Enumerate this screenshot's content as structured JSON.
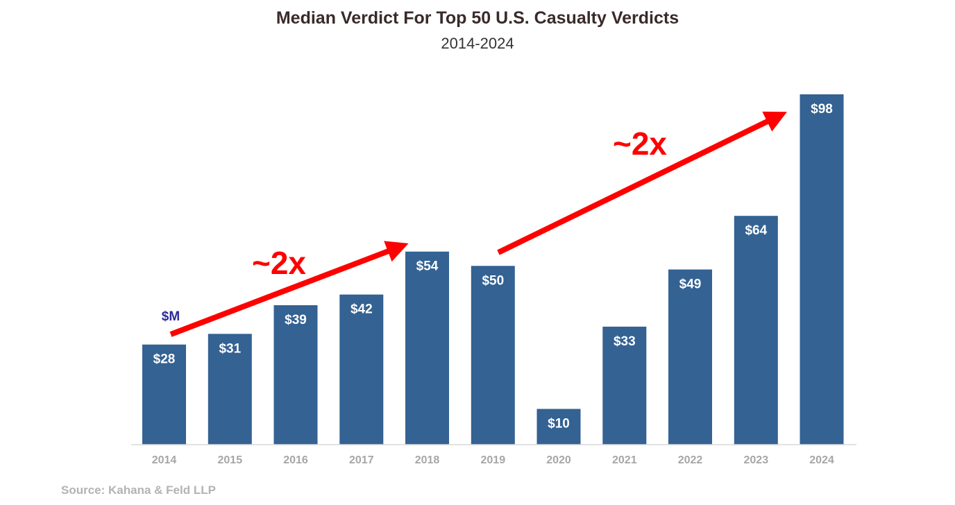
{
  "chart_data": {
    "type": "bar",
    "title": "Median Verdict For Top 50 U.S. Casualty Verdicts",
    "subtitle": "2014-2024",
    "unit_label": "$M",
    "categories": [
      "2014",
      "2015",
      "2016",
      "2017",
      "2018",
      "2019",
      "2020",
      "2021",
      "2022",
      "2023",
      "2024"
    ],
    "values": [
      28,
      31,
      39,
      42,
      54,
      50,
      10,
      33,
      49,
      64,
      98
    ],
    "data_labels": [
      "$28",
      "$31",
      "$39",
      "$42",
      "$54",
      "$50",
      "$10",
      "$33",
      "$49",
      "$64",
      "$98"
    ],
    "ylim": [
      0,
      98
    ],
    "grid": false,
    "legend": "none",
    "annotations": [
      {
        "text": "~2x",
        "from": "2014",
        "to": "2018"
      },
      {
        "text": "~2x",
        "from": "2019",
        "to": "2024"
      }
    ],
    "source": "Source: Kahana & Feld LLP",
    "colors": {
      "bar": "#336293",
      "arrow": "#ff0000",
      "axis_label": "#a6a6a6",
      "unit_label": "#2b2b9a",
      "title": "#3a2a2a"
    }
  }
}
